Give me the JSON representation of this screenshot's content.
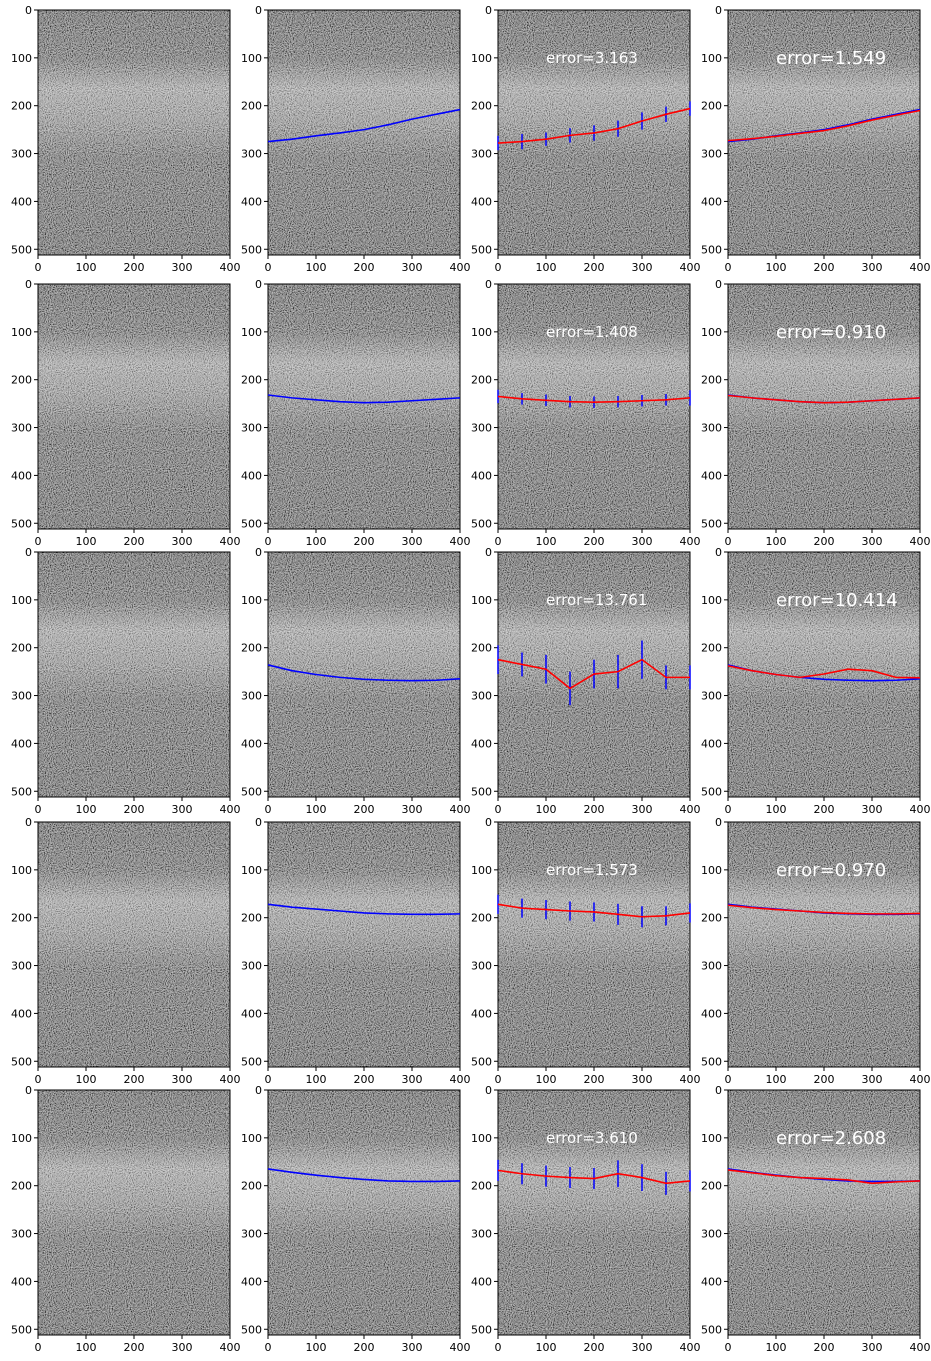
{
  "xlim": [
    0,
    400
  ],
  "ylim": [
    512,
    0
  ],
  "xticks": [
    0,
    100,
    200,
    300,
    400
  ],
  "yticks": [
    0,
    100,
    200,
    300,
    400,
    500
  ],
  "x": [
    0,
    50,
    100,
    150,
    200,
    250,
    300,
    350,
    400
  ],
  "colors": {
    "truth": "#0000ff",
    "pred": "#ff0000",
    "err": "#0000ff",
    "error_text": "#ffffff"
  },
  "rows": [
    {
      "truth": [
        275,
        270,
        263,
        257,
        250,
        240,
        228,
        218,
        208
      ],
      "pred": [
        278,
        275,
        270,
        262,
        257,
        248,
        232,
        218,
        206
      ],
      "pred_err": [
        15,
        16,
        14,
        15,
        16,
        17,
        18,
        16,
        15
      ],
      "refined": [
        273,
        269,
        264,
        258,
        252,
        242,
        230,
        220,
        210
      ],
      "errors": [
        "error=3.163",
        "error=1.549"
      ]
    },
    {
      "truth": [
        232,
        238,
        242,
        246,
        248,
        247,
        244,
        241,
        238
      ],
      "pred": [
        235,
        240,
        243,
        246,
        247,
        246,
        244,
        242,
        238
      ],
      "pred_err": [
        14,
        12,
        12,
        12,
        12,
        12,
        12,
        12,
        16
      ],
      "refined": [
        233,
        238,
        242,
        246,
        248,
        247,
        244,
        241,
        238
      ],
      "errors": [
        "error=1.408",
        "error=0.910"
      ]
    },
    {
      "truth": [
        236,
        248,
        256,
        262,
        266,
        268,
        269,
        268,
        265
      ],
      "pred": [
        225,
        235,
        245,
        285,
        255,
        250,
        225,
        262,
        262
      ],
      "pred_err": [
        30,
        25,
        30,
        35,
        30,
        35,
        40,
        25,
        25
      ],
      "refined": [
        238,
        248,
        256,
        262,
        255,
        245,
        248,
        262,
        263
      ],
      "errors": [
        "error=13.761",
        "error=10.414"
      ]
    },
    {
      "truth": [
        172,
        178,
        182,
        186,
        190,
        192,
        193,
        193,
        192
      ],
      "pred": [
        172,
        180,
        183,
        186,
        188,
        193,
        198,
        196,
        190
      ],
      "pred_err": [
        20,
        20,
        20,
        20,
        20,
        22,
        22,
        20,
        20
      ],
      "refined": [
        174,
        179,
        183,
        186,
        189,
        191,
        192,
        192,
        191
      ],
      "errors": [
        "error=1.573",
        "error=0.970"
      ]
    },
    {
      "truth": [
        165,
        172,
        178,
        183,
        187,
        190,
        191,
        191,
        190
      ],
      "pred": [
        168,
        175,
        180,
        183,
        185,
        175,
        183,
        195,
        190
      ],
      "pred_err": [
        22,
        22,
        22,
        22,
        22,
        28,
        28,
        24,
        22
      ],
      "refined": [
        167,
        173,
        179,
        183,
        185,
        188,
        195,
        192,
        190
      ],
      "errors": [
        "error=3.610",
        "error=2.608"
      ]
    }
  ]
}
